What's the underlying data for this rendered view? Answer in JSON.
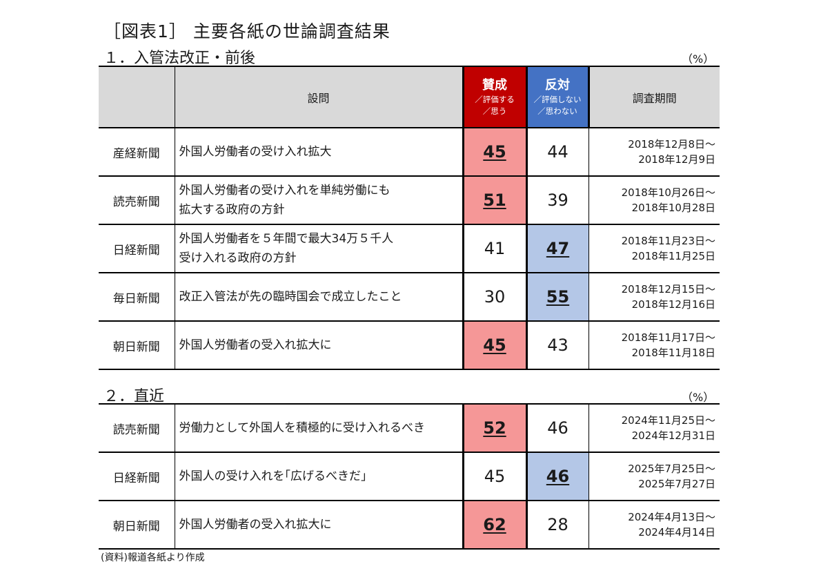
{
  "title": "［図表1］ 主要各紙の世論調査結果",
  "section1": {
    "heading": "１．入管法改正・前後",
    "unit": "（%）"
  },
  "section2": {
    "heading": "２．直近",
    "unit": "（%）"
  },
  "header": {
    "question": "設問",
    "for_main": "賛成",
    "for_sub1": "／評価する",
    "for_sub2": "／思う",
    "against_main": "反対",
    "against_sub1": "／評価しない",
    "against_sub2": "／思わない",
    "period": "調査期間"
  },
  "table1": [
    {
      "paper": "産経新聞",
      "q1": "外国人労働者の受け入れ拡大",
      "q2": "",
      "for": "45",
      "against": "44",
      "d1": "2018年12月8日～",
      "d2": "2018年12月9日",
      "majority": "for"
    },
    {
      "paper": "読売新聞",
      "q1": "外国人労働者の受け入れを単純労働にも",
      "q2": "拡大する政府の方針",
      "for": "51",
      "against": "39",
      "d1": "2018年10月26日～",
      "d2": "2018年10月28日",
      "majority": "for"
    },
    {
      "paper": "日経新聞",
      "q1": "外国人労働者を５年間で最大34万５千人",
      "q2": "受け入れる政府の方針",
      "for": "41",
      "against": "47",
      "d1": "2018年11月23日～",
      "d2": "2018年11月25日",
      "majority": "against"
    },
    {
      "paper": "毎日新聞",
      "q1": "改正入管法が先の臨時国会で成立したこと",
      "q2": "",
      "for": "30",
      "against": "55",
      "d1": "2018年12月15日～",
      "d2": "2018年12月16日",
      "majority": "against"
    },
    {
      "paper": "朝日新聞",
      "q1": "外国人労働者の受入れ拡大に",
      "q2": "",
      "for": "45",
      "against": "43",
      "d1": "2018年11月17日～",
      "d2": "2018年11月18日",
      "majority": "for"
    }
  ],
  "table2": [
    {
      "paper": "読売新聞",
      "q1": "労働力として外国人を積極的に受け入れるべき",
      "q2": "",
      "for": "52",
      "against": "46",
      "d1": "2024年11月25日～",
      "d2": "2024年12月31日",
      "majority": "for"
    },
    {
      "paper": "日経新聞",
      "q1": "外国人の受け入れを｢広げるべきだ｣",
      "q2": "",
      "for": "45",
      "against": "46",
      "d1": "2025年7月25日～",
      "d2": "2025年7月27日",
      "majority": "against"
    },
    {
      "paper": "朝日新聞",
      "q1": "外国人労働者の受入れ拡大に",
      "q2": "",
      "for": "62",
      "against": "28",
      "d1": "2024年4月13日～",
      "d2": "2024年4月14日",
      "majority": "for"
    }
  ],
  "colors": {
    "for_header": "#c00000",
    "against_header": "#4472c4",
    "for_highlight": "#f59797",
    "against_highlight": "#b4c7e7",
    "header_gray": "#d9d9d9"
  },
  "source": "(資料)報道各紙より作成"
}
